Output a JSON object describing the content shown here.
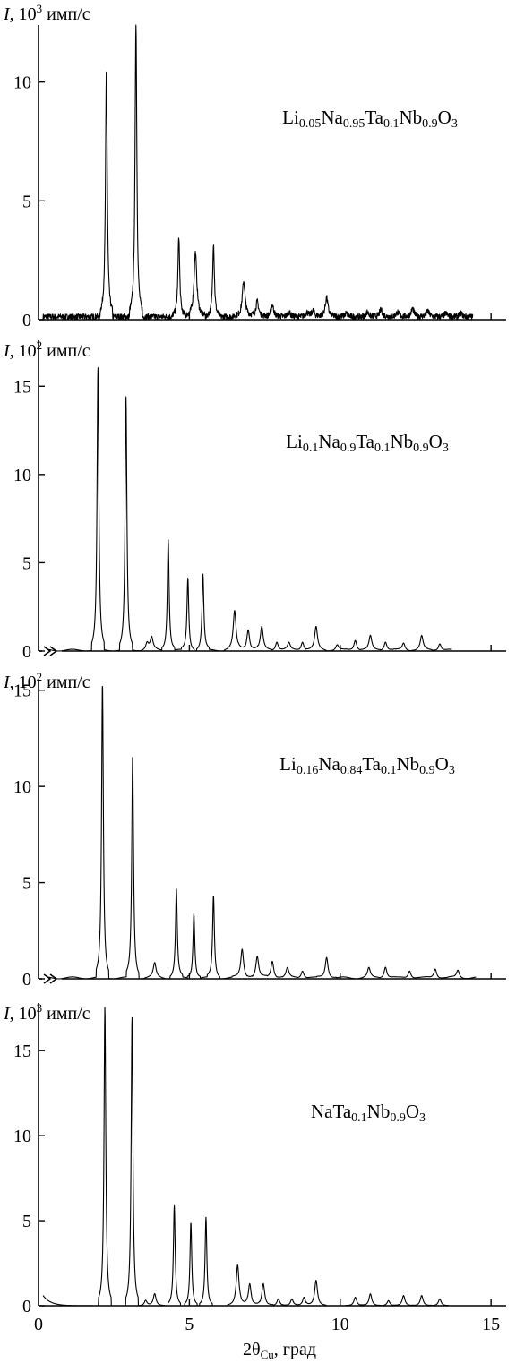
{
  "chart_data": [
    {
      "type": "line",
      "ylabel": {
        "italic": "I",
        "prefix": ", 10",
        "sup": "3",
        "suffix": " имп/с"
      },
      "ylim": [
        0,
        12.4
      ],
      "yticks": [
        0,
        5,
        10
      ],
      "xlim": [
        0,
        15.5
      ],
      "xticks": [
        0,
        5,
        10,
        15
      ],
      "axis_break": false,
      "baseline": "noisy",
      "series_name": [
        [
          "Li",
          ""
        ],
        [
          "0.05",
          "sub"
        ],
        [
          "Na",
          ""
        ],
        [
          "0.95",
          "sub"
        ],
        [
          "Ta",
          ""
        ],
        [
          "0.1",
          "sub"
        ],
        [
          "Nb",
          ""
        ],
        [
          "0.9",
          "sub"
        ],
        [
          "O",
          ""
        ],
        [
          "3",
          "sub"
        ]
      ],
      "peaks": [
        [
          2.25,
          10.4
        ],
        [
          3.23,
          12.4
        ],
        [
          4.65,
          3.4
        ],
        [
          5.2,
          2.7
        ],
        [
          5.8,
          3.1
        ],
        [
          6.8,
          1.5
        ],
        [
          7.25,
          0.65
        ],
        [
          7.75,
          0.5
        ],
        [
          8.3,
          0.2
        ],
        [
          8.9,
          0.18
        ],
        [
          9.1,
          0.25
        ],
        [
          9.55,
          0.8
        ],
        [
          10.2,
          0.15
        ],
        [
          10.9,
          0.2
        ],
        [
          11.35,
          0.3
        ],
        [
          11.9,
          0.2
        ],
        [
          12.4,
          0.35
        ],
        [
          12.9,
          0.25
        ],
        [
          13.5,
          0.15
        ],
        [
          14.0,
          0.15
        ]
      ],
      "x_end": 14.4
    },
    {
      "type": "line",
      "ylabel": {
        "italic": "I",
        "prefix": ", 10",
        "sup": "2",
        "suffix": " имп/с"
      },
      "ylim": [
        0,
        17.6
      ],
      "yticks": [
        0,
        5,
        10,
        15
      ],
      "xlim": [
        0,
        15.5
      ],
      "xticks": [
        0,
        5,
        10,
        15
      ],
      "axis_break": true,
      "baseline": "smooth",
      "series_name": [
        [
          "Li",
          ""
        ],
        [
          "0.1",
          "sub"
        ],
        [
          "Na",
          ""
        ],
        [
          "0.9",
          "sub"
        ],
        [
          "Ta",
          ""
        ],
        [
          "0.1",
          "sub"
        ],
        [
          "Nb",
          ""
        ],
        [
          "0.9",
          "sub"
        ],
        [
          "O",
          ""
        ],
        [
          "3",
          "sub"
        ]
      ],
      "peaks": [
        [
          1.97,
          16.0
        ],
        [
          2.9,
          14.3
        ],
        [
          3.6,
          0.4
        ],
        [
          3.75,
          0.7
        ],
        [
          4.3,
          6.3
        ],
        [
          4.95,
          4.1
        ],
        [
          5.45,
          4.3
        ],
        [
          6.5,
          2.2
        ],
        [
          6.95,
          1.2
        ],
        [
          7.4,
          1.3
        ],
        [
          7.9,
          0.5
        ],
        [
          8.3,
          0.4
        ],
        [
          8.75,
          0.5
        ],
        [
          9.2,
          1.3
        ],
        [
          9.9,
          0.3
        ],
        [
          10.5,
          0.6
        ],
        [
          11.0,
          0.8
        ],
        [
          11.5,
          0.5
        ],
        [
          12.1,
          0.4
        ],
        [
          12.7,
          0.8
        ],
        [
          13.3,
          0.4
        ]
      ],
      "x_end": 13.7
    },
    {
      "type": "line",
      "ylabel": {
        "italic": "I",
        "prefix": ", 10",
        "sup": "2",
        "suffix": " имп/с"
      },
      "ylim": [
        0,
        15.5
      ],
      "yticks": [
        0,
        5,
        10,
        15
      ],
      "xlim": [
        0,
        15.5
      ],
      "xticks": [
        0,
        5,
        10,
        15
      ],
      "axis_break": true,
      "baseline": "smooth",
      "series_name": [
        [
          "Li",
          ""
        ],
        [
          "0.16",
          "sub"
        ],
        [
          "Na",
          ""
        ],
        [
          "0.84",
          "sub"
        ],
        [
          "Ta",
          ""
        ],
        [
          "0.1",
          "sub"
        ],
        [
          "Nb",
          ""
        ],
        [
          "0.9",
          "sub"
        ],
        [
          "O",
          ""
        ],
        [
          "3",
          "sub"
        ]
      ],
      "peaks": [
        [
          2.12,
          15.3
        ],
        [
          3.12,
          11.6
        ],
        [
          3.85,
          0.75
        ],
        [
          4.57,
          4.6
        ],
        [
          5.15,
          3.4
        ],
        [
          5.8,
          4.3
        ],
        [
          6.75,
          1.5
        ],
        [
          7.25,
          1.1
        ],
        [
          7.75,
          0.9
        ],
        [
          8.25,
          0.5
        ],
        [
          8.75,
          0.4
        ],
        [
          9.55,
          1.1
        ],
        [
          10.95,
          0.5
        ],
        [
          11.5,
          0.6
        ],
        [
          12.3,
          0.4
        ],
        [
          13.15,
          0.5
        ],
        [
          13.9,
          0.4
        ]
      ],
      "x_end": 14.5
    },
    {
      "type": "line",
      "ylabel": {
        "italic": "I",
        "prefix": ", 10",
        "sup": "3",
        "suffix": " имп/с"
      },
      "ylim": [
        0,
        17.8
      ],
      "yticks": [
        0,
        5,
        10,
        15
      ],
      "xlim": [
        0,
        15.5
      ],
      "xticks": [
        0,
        5,
        10,
        15
      ],
      "xlabel": {
        "main": "2θ",
        "sub": "Cu",
        "suffix": ", град"
      },
      "axis_break": false,
      "baseline": "rising-start",
      "series_name": [
        [
          "NaTa",
          ""
        ],
        [
          "0.1",
          "sub"
        ],
        [
          "Nb",
          ""
        ],
        [
          "0.9",
          "sub"
        ],
        [
          "O",
          ""
        ],
        [
          "3",
          "sub"
        ]
      ],
      "peaks": [
        [
          2.2,
          17.6
        ],
        [
          3.1,
          17.0
        ],
        [
          3.55,
          0.3
        ],
        [
          3.85,
          0.7
        ],
        [
          4.5,
          5.9
        ],
        [
          5.05,
          4.9
        ],
        [
          5.55,
          5.2
        ],
        [
          6.6,
          2.4
        ],
        [
          7.0,
          1.3
        ],
        [
          7.45,
          1.3
        ],
        [
          7.95,
          0.4
        ],
        [
          8.4,
          0.4
        ],
        [
          8.8,
          0.5
        ],
        [
          9.2,
          1.5
        ],
        [
          10.5,
          0.5
        ],
        [
          11.0,
          0.7
        ],
        [
          11.6,
          0.3
        ],
        [
          12.1,
          0.6
        ],
        [
          12.7,
          0.6
        ],
        [
          13.3,
          0.4
        ]
      ],
      "x_end": 13.6
    }
  ]
}
